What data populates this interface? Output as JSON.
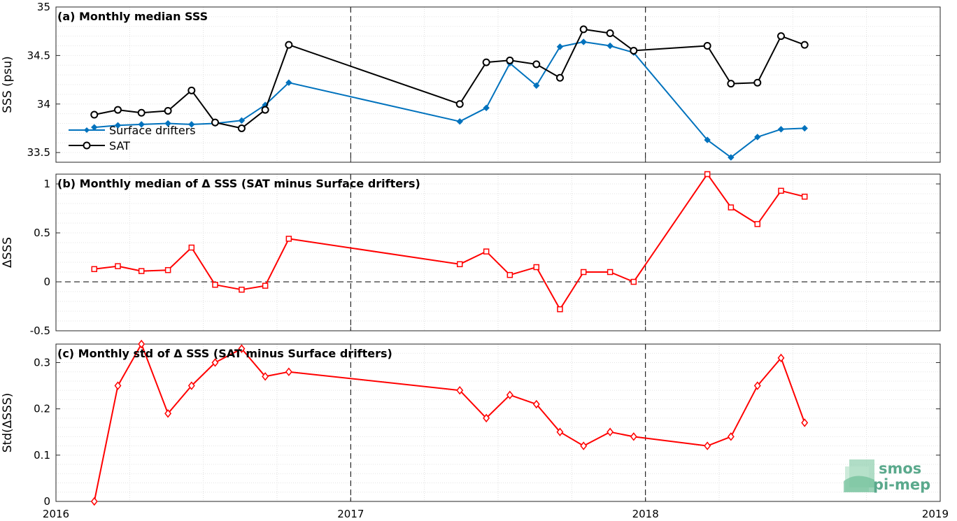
{
  "chart_data": [
    {
      "type": "line",
      "title": "(a) Monthly median SSS",
      "ylabel": "SSS (psu)",
      "xlim": [
        2016,
        2019
      ],
      "ylim": [
        33.4,
        35
      ],
      "yticks": [
        33.5,
        34,
        34.5,
        35
      ],
      "yticklabels": [
        "33.5",
        "34",
        "34.5",
        "35"
      ],
      "grid": true,
      "legend": "bottom-left",
      "series": [
        {
          "name": "Surface drifters",
          "color": "#0072BD",
          "marker": "diamond",
          "x": [
            2016.13,
            2016.21,
            2016.29,
            2016.38,
            2016.46,
            2016.54,
            2016.63,
            2016.71,
            2016.79,
            2017.37,
            2017.46,
            2017.54,
            2017.63,
            2017.71,
            2017.79,
            2017.88,
            2017.96,
            2018.21,
            2018.29,
            2018.38,
            2018.46,
            2018.54
          ],
          "values": [
            33.76,
            33.78,
            33.79,
            33.8,
            33.79,
            33.8,
            33.83,
            33.99,
            34.22,
            33.82,
            33.96,
            34.42,
            34.19,
            34.59,
            34.64,
            34.6,
            34.53,
            33.63,
            33.45,
            33.66,
            33.74,
            33.75
          ]
        },
        {
          "name": "SAT",
          "color": "#000000",
          "marker": "circle",
          "x": [
            2016.13,
            2016.21,
            2016.29,
            2016.38,
            2016.46,
            2016.54,
            2016.63,
            2016.71,
            2016.79,
            2017.37,
            2017.46,
            2017.54,
            2017.63,
            2017.71,
            2017.79,
            2017.88,
            2017.96,
            2018.21,
            2018.29,
            2018.38,
            2018.46,
            2018.54
          ],
          "values": [
            33.89,
            33.94,
            33.91,
            33.93,
            34.14,
            33.81,
            33.75,
            33.94,
            34.61,
            34.0,
            34.43,
            34.45,
            34.41,
            34.27,
            34.77,
            34.73,
            34.55,
            34.6,
            34.21,
            34.22,
            34.7,
            34.61
          ]
        }
      ]
    },
    {
      "type": "line",
      "title": "(b) Monthly median of Δ SSS (SAT minus Surface drifters)",
      "ylabel": "ΔSSS",
      "xlim": [
        2016,
        2019
      ],
      "ylim": [
        -0.5,
        1.1
      ],
      "yticks": [
        -0.5,
        0,
        0.5,
        1
      ],
      "yticklabels": [
        "-0.5",
        "0",
        "0.5",
        "1"
      ],
      "grid": true,
      "zero_line": true,
      "series": [
        {
          "color": "#FF0000",
          "marker": "square",
          "x": [
            2016.13,
            2016.21,
            2016.29,
            2016.38,
            2016.46,
            2016.54,
            2016.63,
            2016.71,
            2016.79,
            2017.37,
            2017.46,
            2017.54,
            2017.63,
            2017.71,
            2017.79,
            2017.88,
            2017.96,
            2018.21,
            2018.29,
            2018.38,
            2018.46,
            2018.54
          ],
          "values": [
            0.13,
            0.16,
            0.11,
            0.12,
            0.35,
            -0.03,
            -0.08,
            -0.04,
            0.44,
            0.18,
            0.31,
            0.07,
            0.15,
            -0.28,
            0.1,
            0.1,
            0.0,
            1.1,
            0.76,
            0.59,
            0.93,
            0.87
          ]
        }
      ]
    },
    {
      "type": "line",
      "title": "(c) Monthly std of Δ SSS (SAT minus Surface drifters)",
      "ylabel": "Std(ΔSSS)",
      "xlim": [
        2016,
        2019
      ],
      "ylim": [
        0,
        0.34
      ],
      "yticks": [
        0,
        0.1,
        0.2,
        0.3
      ],
      "yticklabels": [
        "0",
        "0.1",
        "0.2",
        "0.3"
      ],
      "xticks": [
        2016,
        2017,
        2018,
        2019
      ],
      "xticklabels": [
        "2016",
        "2017",
        "2018",
        "2019"
      ],
      "grid": true,
      "series": [
        {
          "color": "#FF0000",
          "marker": "diamond-open",
          "x": [
            2016.13,
            2016.21,
            2016.29,
            2016.38,
            2016.46,
            2016.54,
            2016.63,
            2016.71,
            2016.79,
            2017.37,
            2017.46,
            2017.54,
            2017.63,
            2017.71,
            2017.79,
            2017.88,
            2017.96,
            2018.21,
            2018.29,
            2018.38,
            2018.46,
            2018.54
          ],
          "values": [
            0.0,
            0.25,
            0.34,
            0.19,
            0.25,
            0.3,
            0.33,
            0.27,
            0.28,
            0.24,
            0.18,
            0.23,
            0.21,
            0.15,
            0.12,
            0.15,
            0.14,
            0.12,
            0.14,
            0.25,
            0.31,
            0.17
          ]
        }
      ]
    }
  ],
  "logo": {
    "line1": "smos",
    "line2": "pi-mep",
    "color": "#5aa98c"
  }
}
